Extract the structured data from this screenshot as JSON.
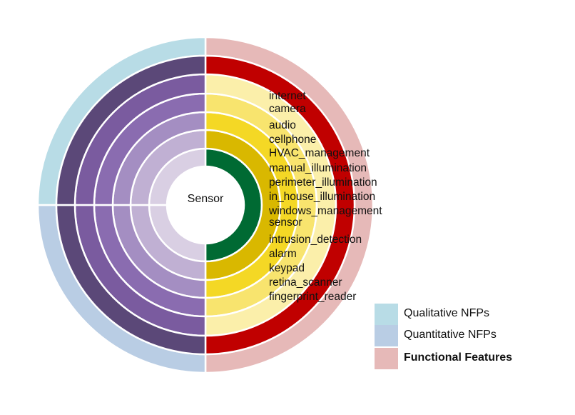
{
  "center_label": "Sensor",
  "features": [
    "internet",
    "camera",
    "audio",
    "cellphone",
    "HVAC_management",
    "manual_illumination",
    "perimeter_illumination",
    "in_house_illumination",
    "windows_management",
    "sensor",
    "intrusion_detection",
    "alarm",
    "keypad",
    "retina_scanner",
    "fingerprint_reader"
  ],
  "legend": [
    {
      "label": "Qualitative NFPs",
      "color": "#b8dce6"
    },
    {
      "label": "Quantitative NFPs",
      "color": "#b9cde4"
    },
    {
      "label": "Functional Features",
      "color": "#e6b9b8"
    }
  ],
  "colors": {
    "qualitative": "#b8dce6",
    "quantitative": "#b9cde4",
    "functional": "#e6b9b8",
    "purple_levels": [
      "#d9cfe3",
      "#c0b0d3",
      "#a48ec2",
      "#8a6cb0",
      "#7a5b9f",
      "#5b4878"
    ],
    "feature_levels": [
      "#006a33",
      "#d9b800",
      "#f4d825",
      "#f8e46e",
      "#fbefaa",
      "#c00000"
    ]
  }
}
